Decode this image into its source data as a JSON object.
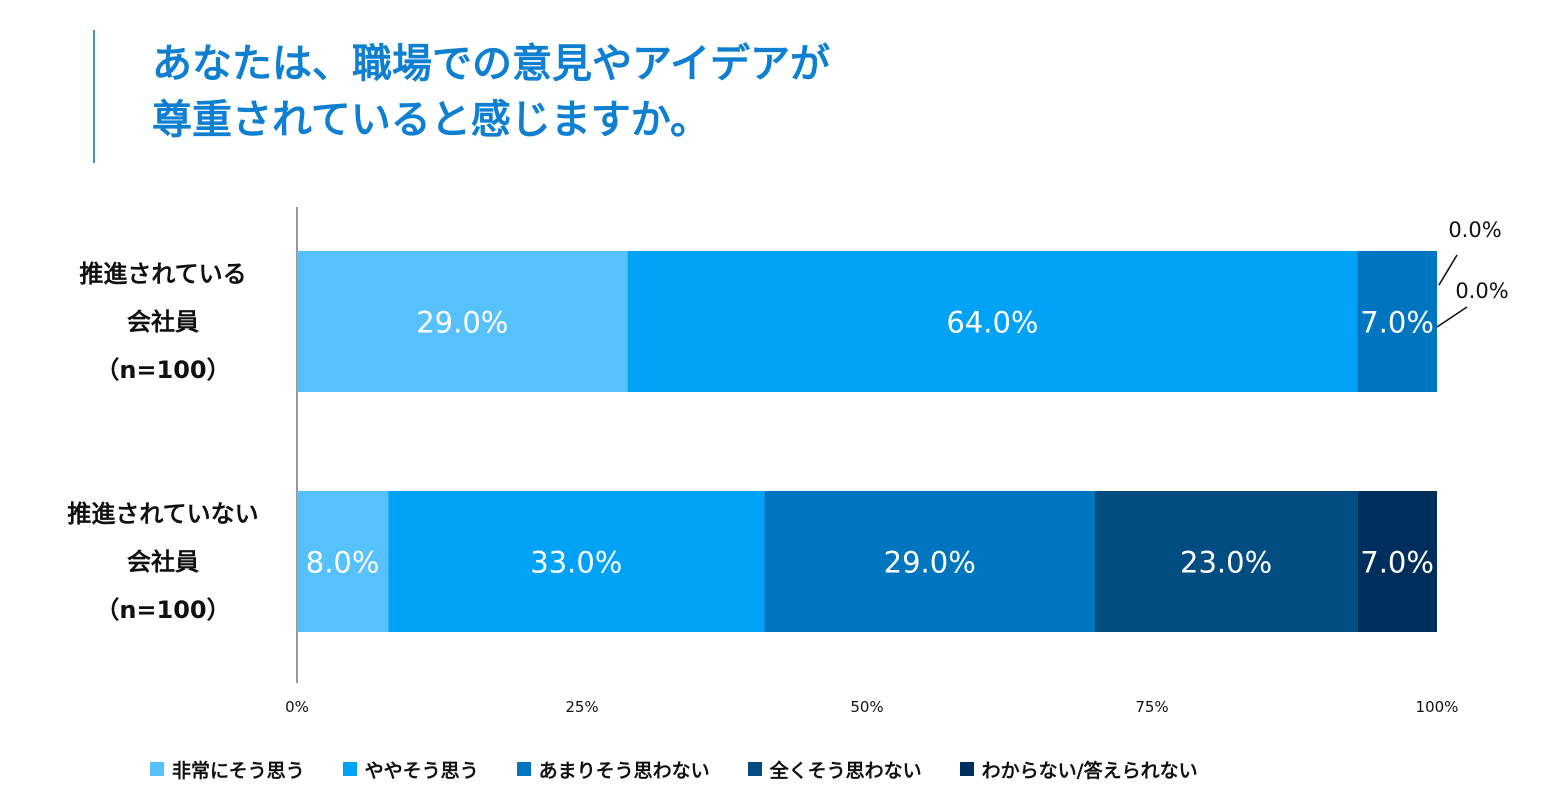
{
  "title": {
    "line1": "あなたは、職場での意見やアイデアが",
    "line2": "尊重されていると感じますか。"
  },
  "colors": {
    "title": "#0e7fd1",
    "series": [
      "#56c1fc",
      "#00a2f6",
      "#0075bf",
      "#014c80",
      "#002e5d"
    ]
  },
  "chart_data": {
    "type": "bar",
    "orientation": "horizontal",
    "stacked": true,
    "title": "あなたは、職場での意見やアイデアが尊重されていると感じますか。",
    "xlim": [
      0,
      100
    ],
    "x_ticks": [
      "0%",
      "25%",
      "50%",
      "75%",
      "100%"
    ],
    "categories": [
      {
        "lines": [
          "推進されている",
          "会社員",
          "（n=100）"
        ]
      },
      {
        "lines": [
          "推進されていない",
          "会社員",
          "（n=100）"
        ]
      }
    ],
    "series": [
      {
        "name": "非常にそう思う",
        "values": [
          29.0,
          8.0
        ],
        "labels": [
          "29.0%",
          "8.0%"
        ]
      },
      {
        "name": "ややそう思う",
        "values": [
          64.0,
          33.0
        ],
        "labels": [
          "64.0%",
          "33.0%"
        ]
      },
      {
        "name": "あまりそう思わない",
        "values": [
          7.0,
          29.0
        ],
        "labels": [
          "7.0%",
          "29.0%"
        ]
      },
      {
        "name": "全くそう思わない",
        "values": [
          0.0,
          23.0
        ],
        "labels": [
          "0.0%",
          "23.0%"
        ]
      },
      {
        "name": "わからない/答えられない",
        "values": [
          0.0,
          7.0
        ],
        "labels": [
          "0.0%",
          "7.0%"
        ]
      }
    ],
    "legend_position": "bottom",
    "grid": false
  }
}
